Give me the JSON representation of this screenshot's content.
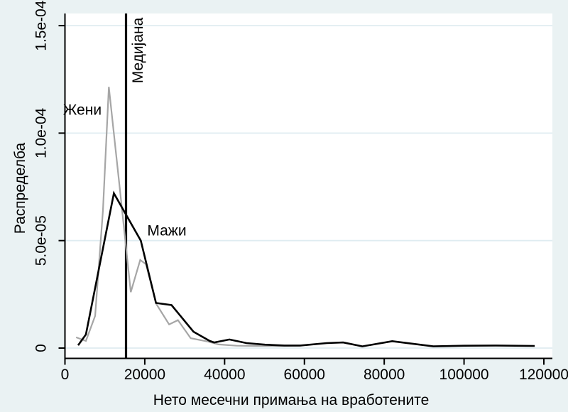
{
  "figure": {
    "background_color": "#eaf2f3",
    "plot_background_color": "#ffffff",
    "gridline_color": "#dfecf1",
    "axis_color": "#000000",
    "text_color": "#000000"
  },
  "chart_data": {
    "type": "line",
    "title": "",
    "xlabel": "Нето месечни примања на вработените",
    "ylabel": "Распределба",
    "xlim": [
      0,
      120000
    ],
    "ylim": [
      0,
      0.000155
    ],
    "grid": true,
    "legend_position": "none (series labeled directly on plot)",
    "x_tick_values": [
      0,
      20000,
      40000,
      60000,
      80000,
      100000,
      120000
    ],
    "x_tick_labels": [
      "0",
      "20000",
      "40000",
      "60000",
      "80000",
      "100000",
      "120000"
    ],
    "y_tick_values": [
      0,
      5e-05,
      0.0001,
      0.00015
    ],
    "y_tick_labels": [
      "0",
      "5.0e-05",
      "1.0e-04",
      "1.5e-04"
    ],
    "reference_line": {
      "label": "Медијана",
      "x": 15300,
      "color": "#000000"
    },
    "series": [
      {
        "name": "Жени",
        "color": "#a6a6a6",
        "stroke_width": 2.2,
        "label_anchor": {
          "x": 4360,
          "y": 0.0001107
        },
        "points": [
          [
            2800,
            5e-06
          ],
          [
            5250,
            3.3e-06
          ],
          [
            7560,
            1.5e-05
          ],
          [
            9520,
            6.4e-05
          ],
          [
            11000,
            0.0001215
          ],
          [
            13700,
            7.5e-05
          ],
          [
            16500,
            2.6e-05
          ],
          [
            18850,
            4.1e-05
          ],
          [
            20300,
            3.9e-05
          ],
          [
            22900,
            2.05e-05
          ],
          [
            26100,
            1.1e-05
          ],
          [
            28300,
            1.3e-05
          ],
          [
            31500,
            4.6e-06
          ],
          [
            35900,
            3e-06
          ],
          [
            38500,
            1.7e-06
          ],
          [
            43000,
            1.1e-06
          ],
          [
            48000,
            1e-06
          ],
          [
            54000,
            1e-06
          ],
          [
            59000,
            1.1e-06
          ]
        ]
      },
      {
        "name": "Мажи",
        "color": "#000000",
        "stroke_width": 2.6,
        "label_anchor": {
          "x": 25530,
          "y": 5.45e-05
        },
        "points": [
          [
            3300,
            1.3e-06
          ],
          [
            5250,
            6.3e-06
          ],
          [
            12250,
            7.2e-05
          ],
          [
            19000,
            5e-05
          ],
          [
            22800,
            2.1e-05
          ],
          [
            26700,
            2e-05
          ],
          [
            32200,
            7.6e-06
          ],
          [
            36300,
            3.3e-06
          ],
          [
            37400,
            2.6e-06
          ],
          [
            41200,
            4e-06
          ],
          [
            45500,
            2.3e-06
          ],
          [
            50100,
            1.6e-06
          ],
          [
            55000,
            1.2e-06
          ],
          [
            59000,
            1.2e-06
          ],
          [
            65600,
            2.3e-06
          ],
          [
            69700,
            2.6e-06
          ],
          [
            74500,
            8e-07
          ],
          [
            82000,
            3.2e-06
          ],
          [
            92300,
            8e-07
          ],
          [
            100000,
            1.1e-06
          ],
          [
            108000,
            1.2e-06
          ],
          [
            117700,
            1e-06
          ]
        ]
      }
    ]
  }
}
